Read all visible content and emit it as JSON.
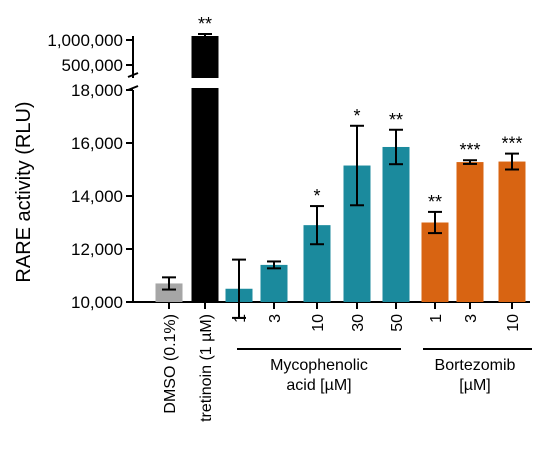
{
  "chart_data": {
    "type": "bar",
    "title": "",
    "ylabel": "RARE activity (RLU)",
    "y_axis": {
      "lower_segment": {
        "ylim": [
          10000,
          18000
        ],
        "ticks": [
          "10,000",
          "12,000",
          "14,000",
          "16,000",
          "18,000"
        ],
        "tick_values": [
          10000,
          12000,
          14000,
          16000,
          18000
        ]
      },
      "upper_segment": {
        "ticks": [
          "500,000",
          "1,000,000"
        ],
        "tick_values": [
          500000,
          1000000
        ]
      },
      "axis_break": true
    },
    "categories": [
      "DMSO (0.1%)",
      "tretinoin (1 µM)",
      "1",
      "3",
      "10",
      "30",
      "50",
      "1",
      "3",
      "10"
    ],
    "values": [
      10700,
      1080000,
      10500,
      11400,
      12900,
      15150,
      15850,
      13000,
      15280,
      15300
    ],
    "errors": [
      230,
      40000,
      1100,
      130,
      720,
      1500,
      650,
      400,
      70,
      300
    ],
    "significance": [
      "",
      "**",
      "",
      "",
      "*",
      "*",
      "**",
      "**",
      "***",
      "***"
    ],
    "colors": [
      "#a6a6a6",
      "#000000",
      "#1b8a9d",
      "#1b8a9d",
      "#1b8a9d",
      "#1b8a9d",
      "#1b8a9d",
      "#d86412",
      "#d86412",
      "#d86412"
    ],
    "groups": [
      {
        "label_lines": [
          "Mycophenolic",
          "acid [µM]"
        ],
        "color": "#1b8a9d"
      },
      {
        "label_lines": [
          "Bortezomib",
          "[µM]"
        ],
        "color": "#d86412"
      }
    ],
    "grid": false,
    "legend": "none"
  }
}
